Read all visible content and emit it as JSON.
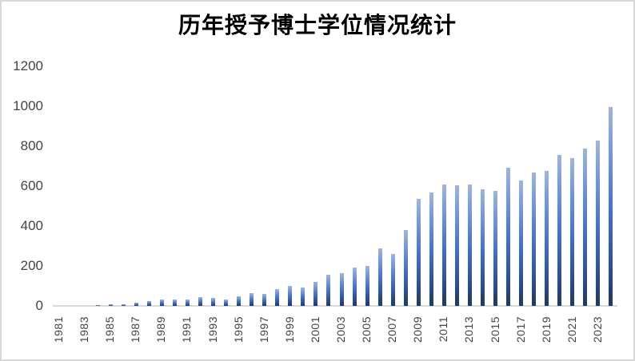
{
  "chart_data": {
    "type": "bar",
    "title": "历年授予博士学位情况统计",
    "xlabel": "",
    "ylabel": "",
    "ylim": [
      0,
      1200
    ],
    "y_ticks": [
      0,
      200,
      400,
      600,
      800,
      1000,
      1200
    ],
    "grid": false,
    "legend": false,
    "categories": [
      1981,
      1982,
      1983,
      1984,
      1985,
      1986,
      1987,
      1988,
      1989,
      1990,
      1991,
      1992,
      1993,
      1994,
      1995,
      1996,
      1997,
      1998,
      1999,
      2000,
      2001,
      2002,
      2003,
      2004,
      2005,
      2006,
      2007,
      2008,
      2009,
      2010,
      2011,
      2012,
      2013,
      2014,
      2015,
      2016,
      2017,
      2018,
      2019,
      2020,
      2021,
      2022,
      2023,
      2024
    ],
    "values": [
      0,
      0,
      0,
      5,
      10,
      7,
      16,
      23,
      33,
      34,
      32,
      46,
      40,
      34,
      49,
      65,
      60,
      85,
      102,
      94,
      121,
      156,
      165,
      192,
      200,
      289,
      260,
      380,
      535,
      570,
      610,
      606,
      609,
      583,
      578,
      694,
      629,
      670,
      678,
      755,
      740,
      790,
      828,
      997
    ],
    "x_tick_labels": [
      "1981",
      "1983",
      "1985",
      "1987",
      "1989",
      "1991",
      "1993",
      "1995",
      "1997",
      "1999",
      "2001",
      "2003",
      "2005",
      "2007",
      "2009",
      "2011",
      "2013",
      "2015",
      "2017",
      "2019",
      "2021",
      "2023"
    ],
    "colors": {
      "bar_gradient_top": "#9fb5de",
      "bar_gradient_mid": "#4472c4",
      "bar_gradient_bottom": "#1f3864",
      "axis_line": "#d9d9d9",
      "tick_label": "#444444",
      "title": "#000000",
      "frame_border": "#d8d8d8"
    }
  }
}
